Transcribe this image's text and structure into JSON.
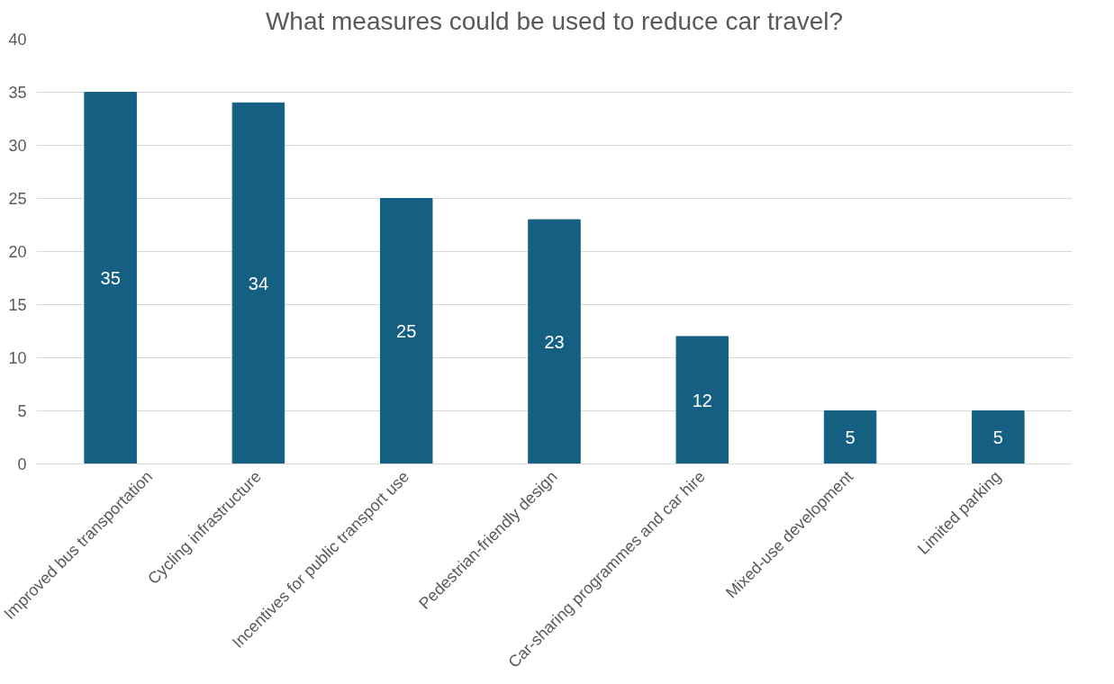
{
  "chart_data": {
    "type": "bar",
    "title": "What measures could be used to reduce car travel?",
    "categories": [
      "Improved bus transportation",
      "Cycling infrastructure",
      "Incentives for public transport use",
      "Pedestrian-friendly design",
      "Car-sharing programmes and car hire",
      "Mixed-use development",
      "Limited parking"
    ],
    "values": [
      35,
      34,
      25,
      23,
      12,
      5,
      5
    ],
    "color": "#156082",
    "ylim": [
      0,
      40
    ],
    "yticks": [
      0,
      5,
      10,
      15,
      20,
      25,
      30,
      35,
      40
    ],
    "grid": "y",
    "data_labels": true
  }
}
